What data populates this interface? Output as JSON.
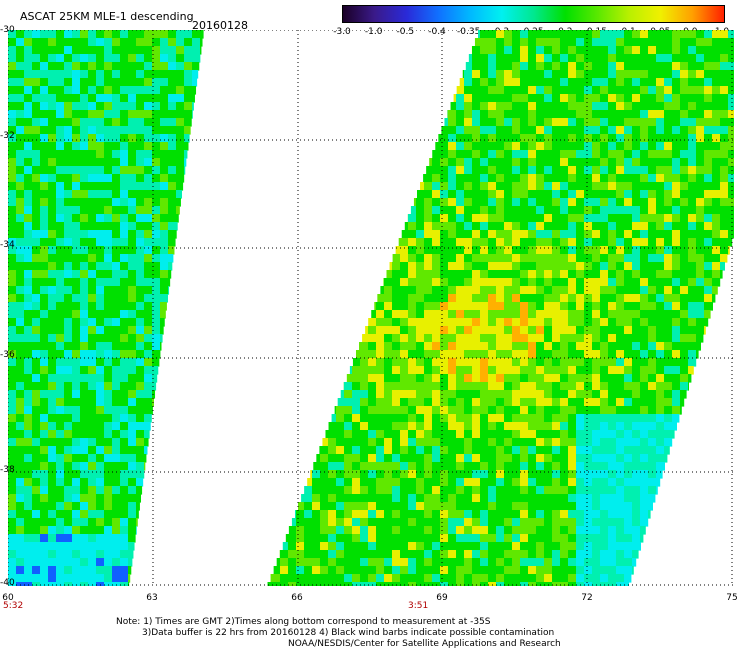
{
  "header": {
    "title": "ASCAT 25KM MLE-1 descending",
    "date": "20160128"
  },
  "colorbar": {
    "labels": [
      "-3.0",
      "-1.0",
      "-0.5",
      "-0.4",
      "-0.35",
      "-0.3",
      "-0.25",
      "-0.2",
      "-0.15",
      "-0.1",
      "-0.05",
      "0.0",
      "1.0"
    ],
    "colors": [
      "#1a0026",
      "#3a1a8a",
      "#2a2ad8",
      "#1070ff",
      "#00b8ff",
      "#00f0f0",
      "#00e890",
      "#00e000",
      "#58e800",
      "#b8f000",
      "#f0f000",
      "#ffa000",
      "#ff2000"
    ]
  },
  "map": {
    "lat_labels": [
      "-30",
      "-32",
      "-34",
      "-36",
      "-38",
      "-40"
    ],
    "lon_labels": [
      "60",
      "63",
      "66",
      "69",
      "72",
      "75"
    ],
    "times": [
      "5:32",
      "3:51"
    ],
    "palette": {
      "cyan": "#00eeee",
      "aqua": "#00f0b0",
      "green": "#00e000",
      "lime": "#60e800",
      "yellow": "#e8f000",
      "orange": "#ffb000",
      "blue": "#1060ff"
    }
  },
  "notes": {
    "line1": "Note: 1) Times are GMT 2)Times along bottom correspond to measurement at -35S",
    "line2": "3)Data buffer is 22 hrs from 20160128 4) Black wind barbs indicate possible contamination",
    "line3": "NOAA/NESDIS/Center for Satellite Applications and Research"
  }
}
